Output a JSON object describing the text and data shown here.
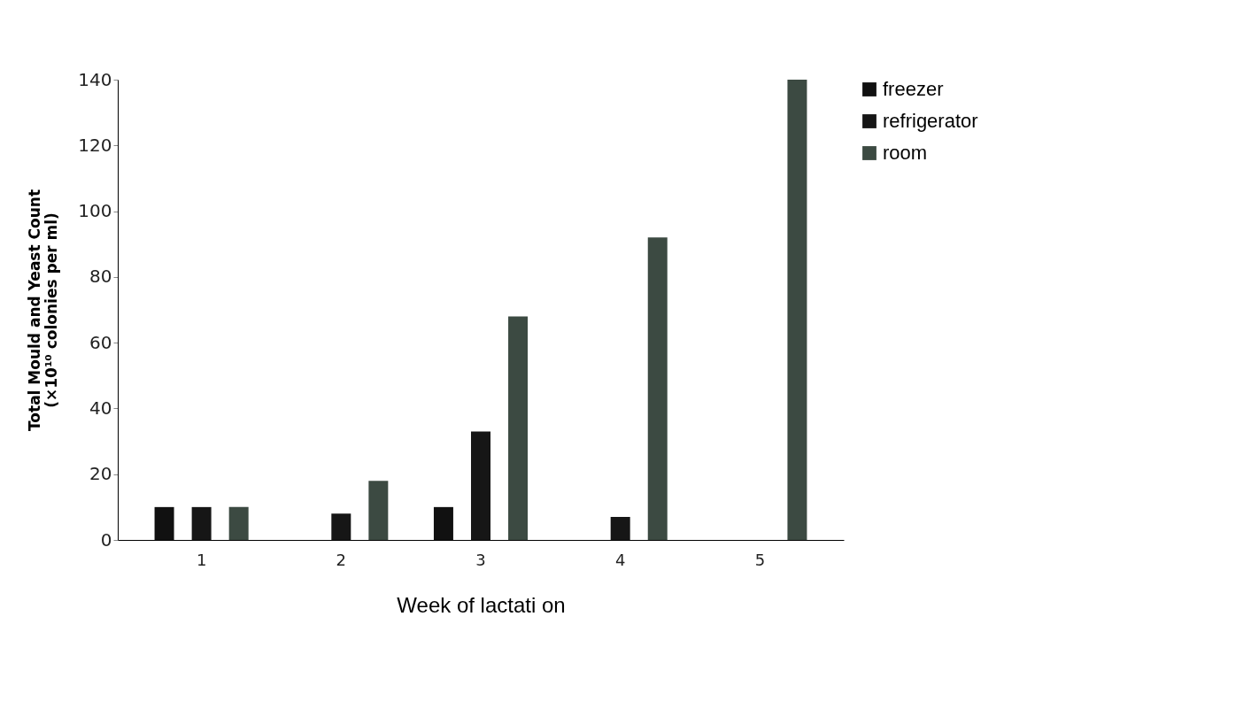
{
  "chart_data": {
    "type": "bar",
    "xlabel": "Week of lactati on",
    "ylabel": "Total Mould and Yeast Count (×10¹⁰ colonies per ml)",
    "categories": [
      "1",
      "2",
      "3",
      "4",
      "5"
    ],
    "series": [
      {
        "name": "freezer",
        "color": "#111111",
        "values": [
          10,
          0,
          10,
          0,
          0
        ]
      },
      {
        "name": "refrigerator",
        "color": "#161616",
        "values": [
          10,
          8,
          33,
          7,
          0
        ]
      },
      {
        "name": "room",
        "color": "#3c4a42",
        "values": [
          10,
          18,
          68,
          92,
          140
        ]
      }
    ],
    "ylim": [
      0,
      140
    ],
    "yticks": [
      0,
      20,
      40,
      60,
      80,
      100,
      120,
      140
    ],
    "grid": false,
    "legend": "right"
  }
}
